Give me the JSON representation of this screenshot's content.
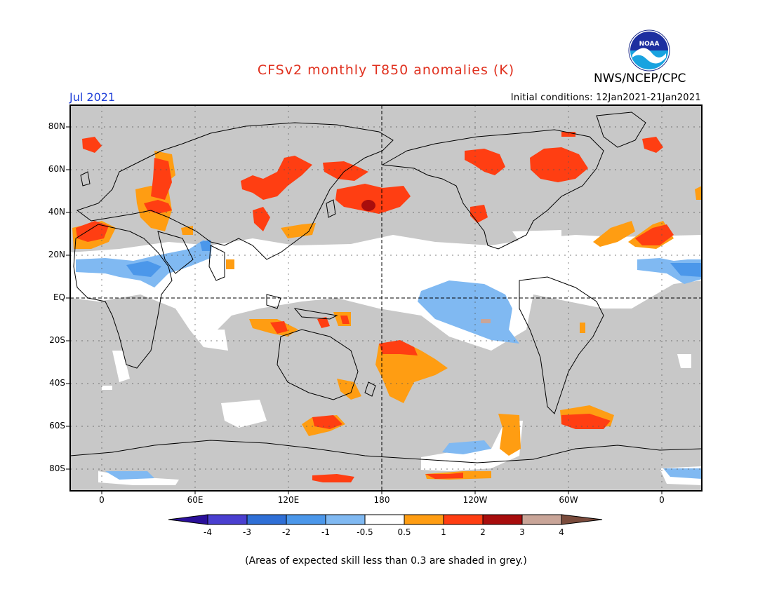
{
  "title": "CFSv2 monthly T850 anomalies (K)",
  "month": "Jul 2021",
  "initial_conditions": "Initial conditions: 12Jan2021-21Jan2021",
  "agency": "NWS/NCEP/CPC",
  "logo_text": "NOAA",
  "lat_labels": [
    "80N",
    "60N",
    "40N",
    "20N",
    "EQ",
    "20S",
    "40S",
    "60S",
    "80S"
  ],
  "lon_labels": [
    "0",
    "60E",
    "120E",
    "180",
    "120W",
    "60W",
    "0"
  ],
  "colorbar": {
    "ticks": [
      "-4",
      "-3",
      "-2",
      "-1",
      "-0.5",
      "0.5",
      "1",
      "2",
      "3",
      "4"
    ],
    "colors": [
      "#2a0f9a",
      "#4a3fd0",
      "#2f6fd6",
      "#4b97ea",
      "#80b9f2",
      "#ffffff",
      "#ff9d12",
      "#ff3e12",
      "#a80d0d",
      "#c9a598",
      "#7a4b3c"
    ]
  },
  "colors": {
    "skill_grey": "#c8c8c8",
    "title_red": "#e0301e",
    "month_blue": "#1f3fd8"
  },
  "footnote": "(Areas of expected skill less than 0.3 are shaded in grey.)"
}
